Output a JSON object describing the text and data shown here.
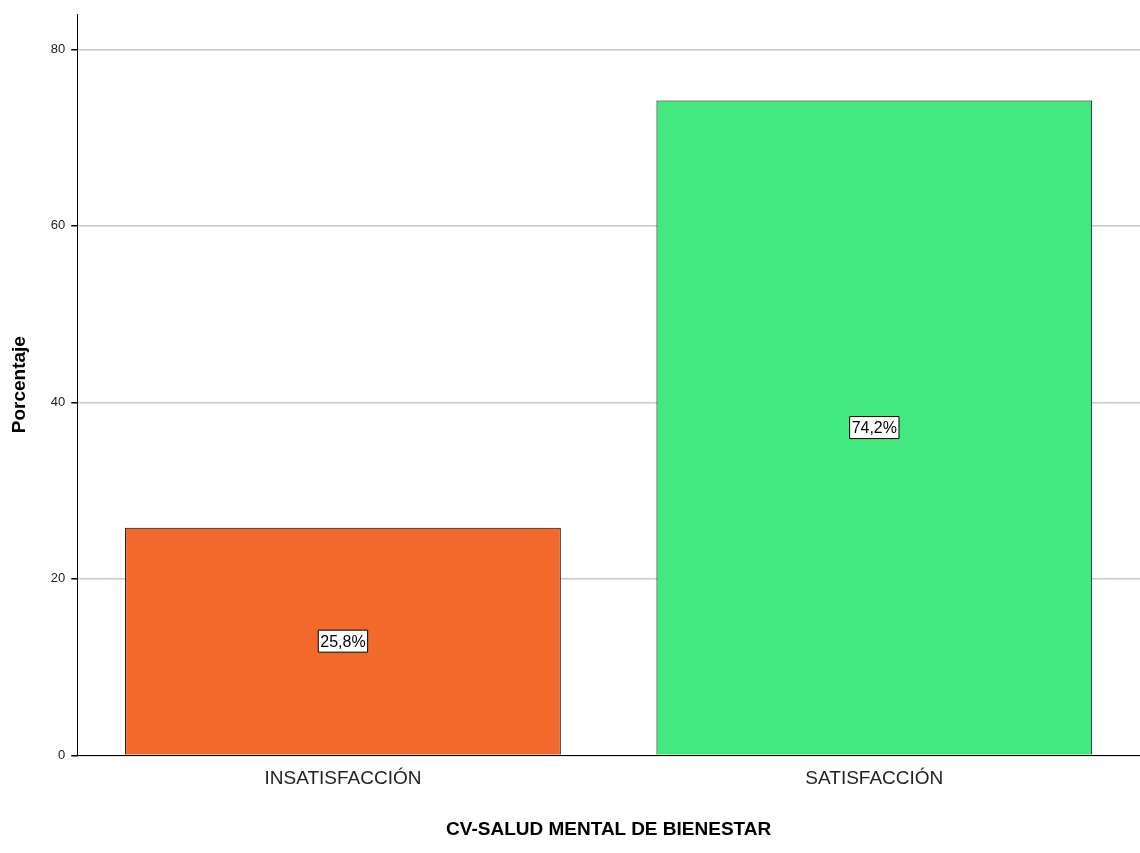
{
  "chart_data": {
    "type": "bar",
    "xlabel": "CV-SALUD MENTAL DE BIENESTAR",
    "ylabel": "Porcentaje",
    "categories": [
      "INSATISFACCIÓN",
      "SATISFACCIÓN"
    ],
    "values": [
      25.8,
      74.2
    ],
    "colors": [
      "#f2692c",
      "#42e97e"
    ],
    "value_labels": [
      "25,8%",
      "74,2%"
    ],
    "ylim": [
      0,
      84
    ],
    "yticks": [
      0,
      20,
      40,
      60,
      80
    ],
    "grid": "y",
    "legend": false
  }
}
